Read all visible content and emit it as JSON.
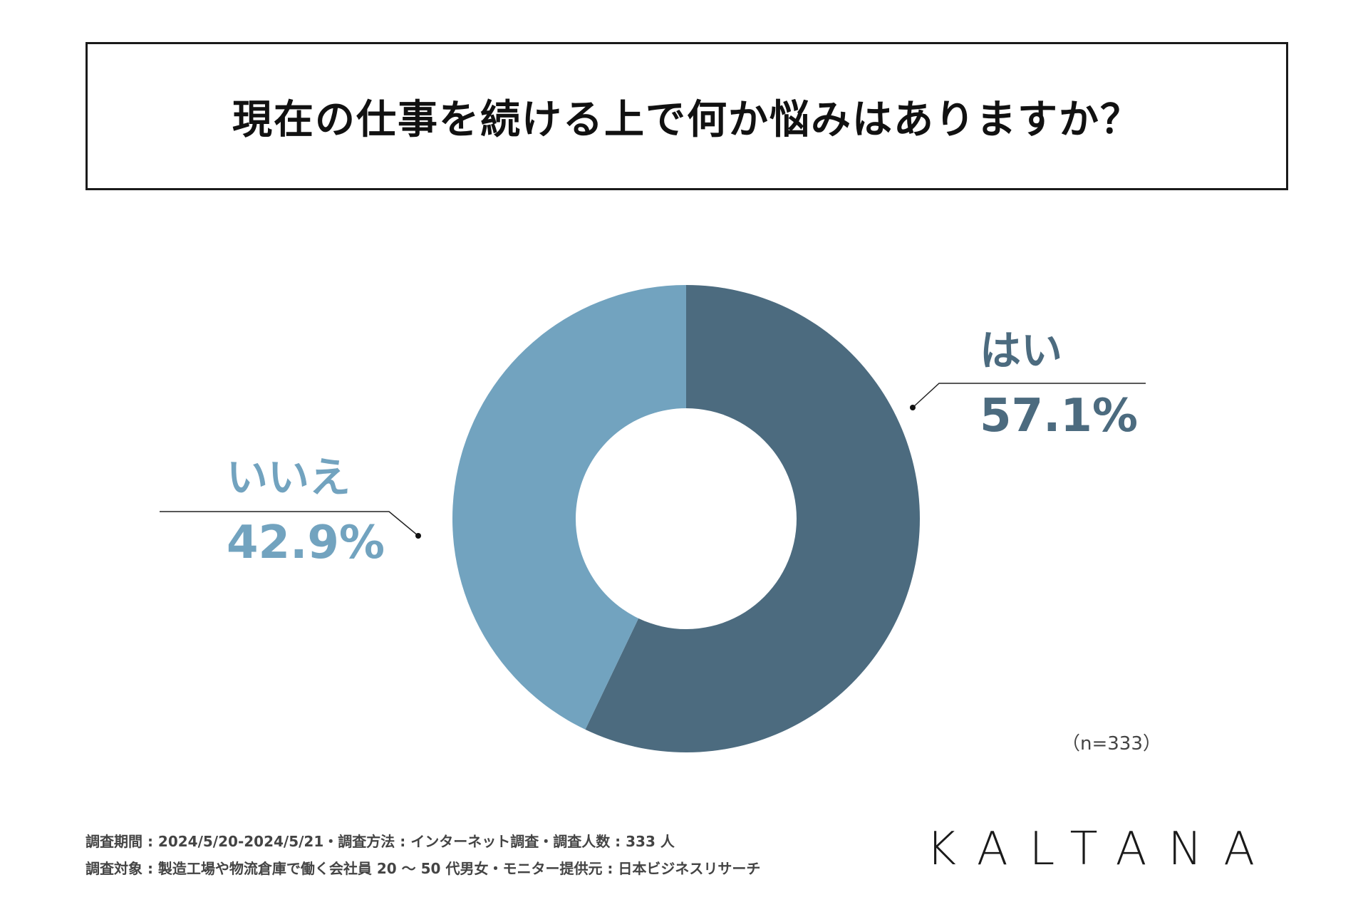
{
  "title": "現在の仕事を続ける上で何か悩みはありますか？",
  "chart_data": {
    "type": "pie",
    "style": "donut",
    "slices": [
      {
        "label": "はい",
        "value": 57.1,
        "value_label": "57.1%",
        "color": "#4c6b7f"
      },
      {
        "label": "いいえ",
        "value": 42.9,
        "value_label": "42.9%",
        "color": "#72a3bf"
      }
    ]
  },
  "sample_size": "（n=333）",
  "footer": {
    "line1": "調査期間 : 2024/5/20-2024/5/21・調査方法 : インターネット調査・調査人数 : 333 人",
    "line2": "調査対象 : 製造工場や物流倉庫で働く会社員 20 〜 50 代男女・モニター提供元 : 日本ビジネスリサーチ"
  },
  "brand": "KALTANA"
}
